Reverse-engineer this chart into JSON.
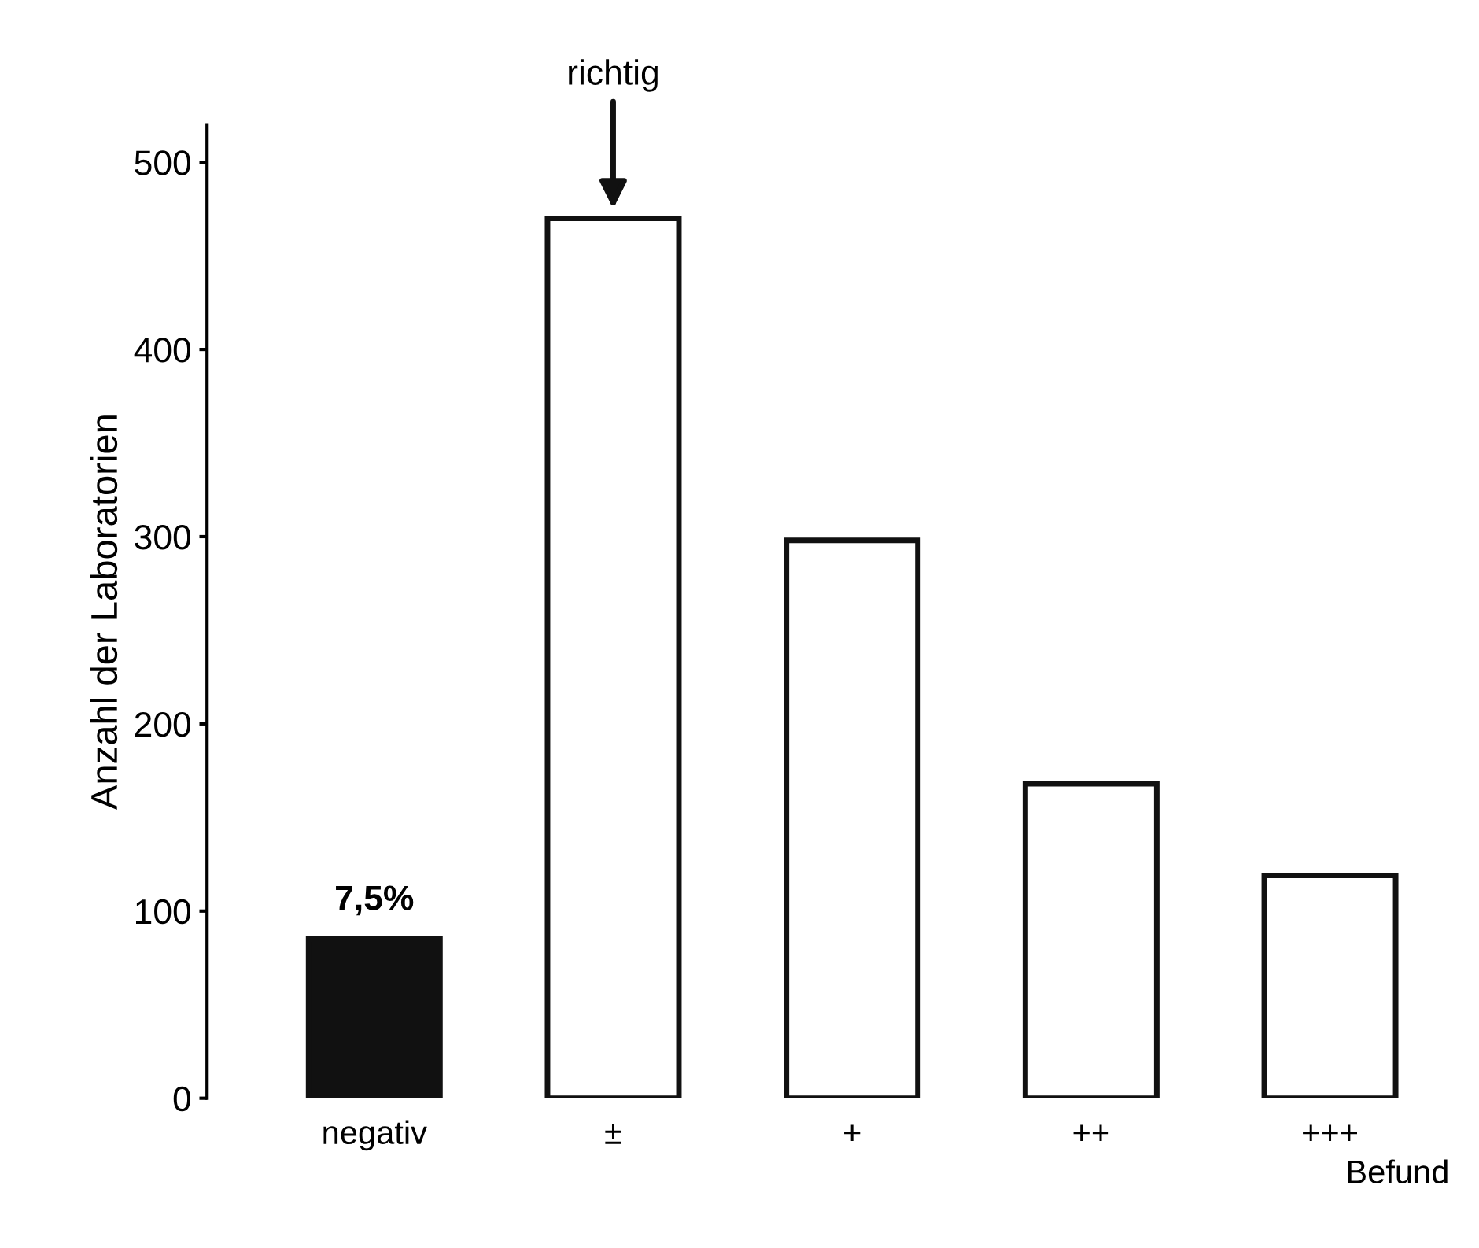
{
  "chart_data": {
    "type": "bar",
    "ylabel": "Anzahl der Laboratorien",
    "xlabel": "Befund",
    "categories": [
      "negativ",
      "±",
      "+",
      "++",
      "+++"
    ],
    "values": [
      85,
      470,
      298,
      168,
      119
    ],
    "colors": [
      "#111111",
      "#ffffff",
      "#ffffff",
      "#ffffff",
      "#ffffff"
    ],
    "ylim": [
      0,
      520
    ],
    "yticks": [
      0,
      100,
      200,
      300,
      400,
      500
    ],
    "grid": false,
    "legend": false,
    "annotations": [
      {
        "text": "7,5%",
        "x": "negativ",
        "y": 85
      },
      "richtig"
    ]
  }
}
